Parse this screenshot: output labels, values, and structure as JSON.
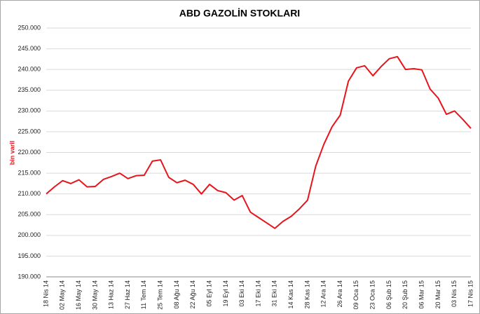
{
  "chart_data": {
    "type": "line",
    "title": "ABD GAZOLİN STOKLARI",
    "ylabel": "bin varil",
    "categories": [
      "18 Nis 14",
      null,
      "02 May 14",
      null,
      "16 May 14",
      null,
      "30 May 14",
      null,
      "13 Haz 14",
      null,
      "27 Haz 14",
      null,
      "11 Tem 14",
      null,
      "25 Tem 14",
      null,
      "08 Ağu 14",
      null,
      "22 Ağu 14",
      null,
      "05 Eyl 14",
      null,
      "19 Eyl 14",
      null,
      "03 Eki 14",
      null,
      "17 Eki 14",
      null,
      "31 Eki 14",
      null,
      "14 Kas 14",
      null,
      "28 Kas 14",
      null,
      "12 Ara 14",
      null,
      "26 Ara 14",
      null,
      "09 Oca 15",
      null,
      "23 Oca 15",
      null,
      "06 Şub 15",
      null,
      "20 Şub 15",
      null,
      "06 Mar 15",
      null,
      "20 Mar 15",
      null,
      "03 Nis 15",
      null,
      "17 Nis 15"
    ],
    "series": [
      {
        "name": "ABD GAZOLİN STOKLARI",
        "color": "#e8141c",
        "values": [
          210000,
          211700,
          213200,
          212500,
          213400,
          211700,
          211800,
          213500,
          214200,
          215000,
          213700,
          214400,
          214500,
          217900,
          218200,
          214000,
          212700,
          213300,
          212300,
          210000,
          212300,
          210800,
          210300,
          208500,
          209600,
          205600,
          204300,
          203000,
          201700,
          203400,
          204600,
          206400,
          208500,
          216700,
          222000,
          226200,
          229000,
          237200,
          240400,
          240900,
          238500,
          240700,
          242600,
          243100,
          240000,
          240200,
          239900,
          235300,
          233100,
          229200,
          230000,
          228000,
          225800
        ]
      }
    ],
    "ylim": [
      190000,
      250000
    ],
    "yticks": [
      {
        "value": 190000,
        "label": "190.000"
      },
      {
        "value": 195000,
        "label": "195.000"
      },
      {
        "value": 200000,
        "label": "200.000"
      },
      {
        "value": 205000,
        "label": "205.000"
      },
      {
        "value": 210000,
        "label": "210.000"
      },
      {
        "value": 215000,
        "label": "215.000"
      },
      {
        "value": 220000,
        "label": "220.000"
      },
      {
        "value": 225000,
        "label": "225.000"
      },
      {
        "value": 230000,
        "label": "230.000"
      },
      {
        "value": 235000,
        "label": "235.000"
      },
      {
        "value": 240000,
        "label": "240.000"
      },
      {
        "value": 245000,
        "label": "245.000"
      },
      {
        "value": 250000,
        "label": "250.000"
      }
    ],
    "grid": true
  }
}
